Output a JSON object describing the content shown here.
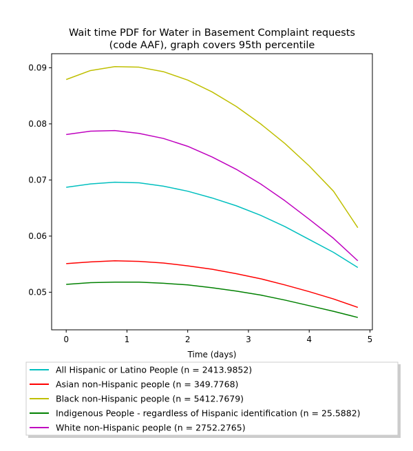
{
  "chart_data": {
    "type": "line",
    "title_lines": [
      "Wait time PDF for Water in Basement Complaint  requests",
      "(code AAF), graph covers 95th percentile"
    ],
    "xlabel": "Time (days)",
    "ylabel": "",
    "xlim": [
      -0.24,
      5.04
    ],
    "ylim": [
      0.0433,
      0.0925
    ],
    "x_ticks": [
      0,
      1,
      2,
      3,
      4,
      5
    ],
    "y_ticks": [
      0.05,
      0.06,
      0.07,
      0.08,
      0.09
    ],
    "x_tick_labels": [
      "0",
      "1",
      "2",
      "3",
      "4",
      "5"
    ],
    "y_tick_labels": [
      "0.05",
      "0.06",
      "0.07",
      "0.08",
      "0.09"
    ],
    "grid": false,
    "legend_position": "below",
    "x": [
      0,
      0.4,
      0.8,
      1.2,
      1.6,
      2.0,
      2.4,
      2.8,
      3.2,
      3.6,
      4.0,
      4.4,
      4.8
    ],
    "series": [
      {
        "name": "All Hispanic or Latino People (n = 2413.9852)",
        "color": "#00bfbf",
        "values": [
          0.0687,
          0.0693,
          0.0696,
          0.0695,
          0.0689,
          0.068,
          0.0668,
          0.0654,
          0.0637,
          0.0617,
          0.0594,
          0.0571,
          0.0544
        ]
      },
      {
        "name": "Asian non-Hispanic people (n = 349.7768)",
        "color": "#ff0000",
        "values": [
          0.0551,
          0.0554,
          0.0556,
          0.0555,
          0.0552,
          0.0547,
          0.0541,
          0.0533,
          0.0524,
          0.0513,
          0.0501,
          0.0488,
          0.0473
        ]
      },
      {
        "name": "Black non-Hispanic people (n = 5412.7679)",
        "color": "#bfbf00",
        "values": [
          0.0879,
          0.0895,
          0.0902,
          0.0901,
          0.0893,
          0.0878,
          0.0857,
          0.0831,
          0.08,
          0.0765,
          0.0725,
          0.068,
          0.0615
        ]
      },
      {
        "name": "Indigenous People - regardless of Hispanic identification (n = 25.5882)",
        "color": "#008000",
        "values": [
          0.0514,
          0.0517,
          0.0518,
          0.0518,
          0.0516,
          0.0513,
          0.0508,
          0.0502,
          0.0495,
          0.0486,
          0.0476,
          0.0466,
          0.0455
        ]
      },
      {
        "name": "White non-Hispanic people (n = 2752.2765)",
        "color": "#bf00bf",
        "values": [
          0.0781,
          0.0787,
          0.0788,
          0.0783,
          0.0774,
          0.076,
          0.0741,
          0.0719,
          0.0693,
          0.0663,
          0.063,
          0.0596,
          0.0556
        ]
      }
    ]
  }
}
